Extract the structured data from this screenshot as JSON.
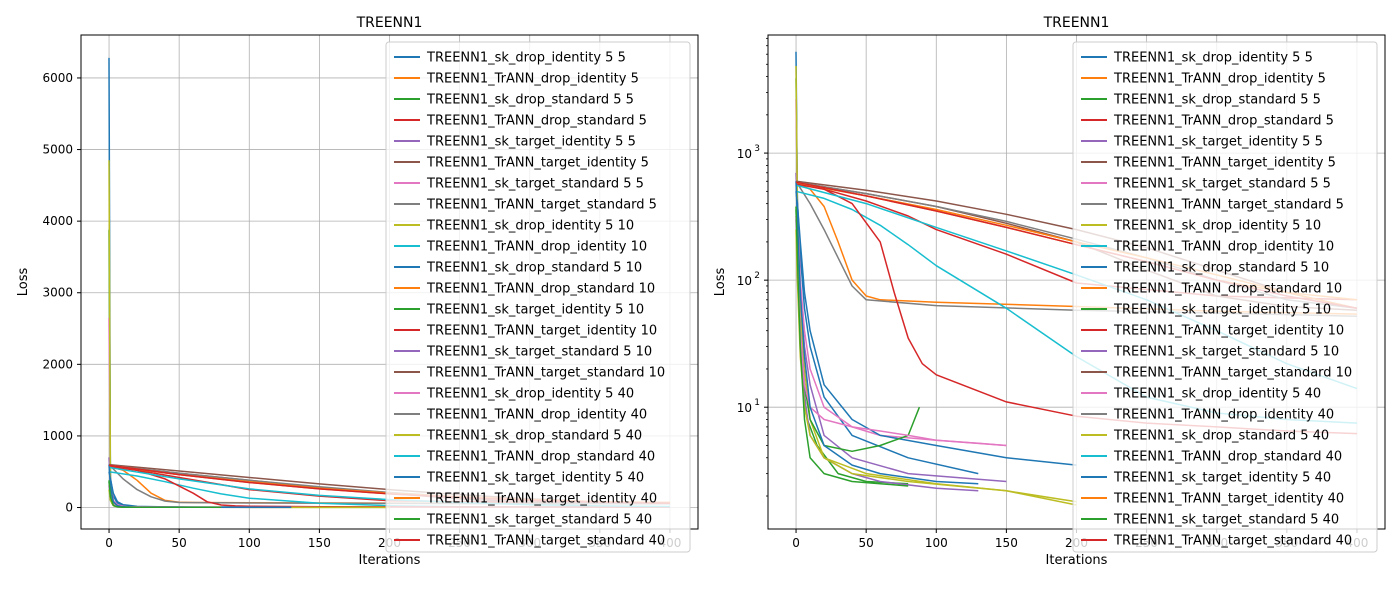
{
  "chart_data": [
    {
      "type": "line",
      "title": "TREENN1",
      "xlabel": "Iterations",
      "ylabel": "Loss",
      "yscale": "linear",
      "xlim": [
        -20,
        420
      ],
      "ylim": [
        -300,
        6600
      ],
      "xticks": [
        0,
        50,
        100,
        150,
        200,
        250,
        300,
        350,
        400
      ],
      "yticks": [
        0,
        1000,
        2000,
        3000,
        4000,
        5000,
        6000
      ],
      "grid": true,
      "legend_position": "upper-right"
    },
    {
      "type": "line",
      "title": "TREENN1",
      "xlabel": "Iterations",
      "ylabel": "Loss",
      "yscale": "log",
      "xlim": [
        -20,
        420
      ],
      "ylim": [
        1.1,
        8500
      ],
      "xticks": [
        0,
        50,
        100,
        150,
        200,
        250,
        300,
        350,
        400
      ],
      "yticks": [
        10,
        100,
        1000
      ],
      "ytick_labels": [
        {
          "base": "10",
          "exp": "1"
        },
        {
          "base": "10",
          "exp": "2"
        },
        {
          "base": "10",
          "exp": "3"
        }
      ],
      "grid": true,
      "legend_position": "upper-right"
    }
  ],
  "series": [
    {
      "name": "TREENN1_sk_drop_identity 5 5",
      "color": "#1f77b4",
      "x": [
        0,
        1,
        3,
        6,
        10,
        20,
        40,
        80,
        130
      ],
      "y": [
        6280,
        420,
        160,
        60,
        30,
        12,
        6,
        4,
        3
      ]
    },
    {
      "name": "TREENN1_TrANN_drop_identity 5",
      "color": "#ff7f0e",
      "x": [
        0,
        10,
        20,
        30,
        40,
        50,
        60,
        100,
        200,
        300,
        400
      ],
      "y": [
        580,
        520,
        380,
        200,
        100,
        75,
        70,
        67,
        62,
        57,
        54
      ]
    },
    {
      "name": "TREENN1_sk_drop_standard 5 5",
      "color": "#2ca02c",
      "x": [
        0,
        1,
        2,
        4,
        8,
        15,
        30,
        50,
        80
      ],
      "y": [
        3880,
        380,
        60,
        20,
        8,
        5,
        3,
        2.6,
        2.5
      ]
    },
    {
      "name": "TREENN1_TrANN_drop_standard 5",
      "color": "#d62728",
      "x": [
        0,
        20,
        50,
        80,
        100,
        150,
        200,
        300,
        400
      ],
      "y": [
        580,
        520,
        420,
        320,
        250,
        160,
        95,
        75,
        70
      ]
    },
    {
      "name": "TREENN1_sk_target_identity 5 5",
      "color": "#9467bd",
      "x": [
        0,
        1,
        3,
        6,
        10,
        20,
        40,
        80,
        150
      ],
      "y": [
        700,
        300,
        80,
        30,
        15,
        6,
        4,
        3,
        2.6
      ]
    },
    {
      "name": "TREENN1_TrANN_target_identity 5",
      "color": "#8c564b",
      "x": [
        0,
        50,
        100,
        150,
        200,
        250,
        300,
        350,
        400
      ],
      "y": [
        590,
        480,
        380,
        280,
        200,
        120,
        75,
        62,
        58
      ]
    },
    {
      "name": "TREENN1_sk_target_standard 5 5",
      "color": "#e377c2",
      "x": [
        0,
        1,
        3,
        6,
        10,
        20,
        40,
        60,
        100,
        150
      ],
      "y": [
        2650,
        400,
        100,
        40,
        20,
        10,
        7,
        6,
        5.5,
        5
      ]
    },
    {
      "name": "TREENN1_TrANN_target_standard 5",
      "color": "#7f7f7f",
      "x": [
        0,
        10,
        20,
        30,
        40,
        50,
        100,
        200,
        300,
        400
      ],
      "y": [
        600,
        400,
        250,
        150,
        90,
        70,
        63,
        58,
        55,
        52
      ]
    },
    {
      "name": "TREENN1_sk_drop_identity 5 10",
      "color": "#bcbd22",
      "x": [
        0,
        1,
        3,
        6,
        10,
        20,
        50,
        100,
        150,
        200
      ],
      "y": [
        4850,
        350,
        60,
        20,
        8,
        4,
        3,
        2.5,
        2.2,
        1.8
      ]
    },
    {
      "name": "TREENN1_TrANN_drop_identity 10",
      "color": "#17becf",
      "x": [
        0,
        20,
        40,
        60,
        80,
        100,
        150,
        200,
        250,
        300,
        350,
        400
      ],
      "y": [
        500,
        440,
        360,
        270,
        190,
        130,
        60,
        25,
        12,
        9,
        8,
        7.5
      ]
    },
    {
      "name": "TREENN1_sk_drop_standard 5 10",
      "color": "#1f77b4",
      "x": [
        0,
        1,
        3,
        6,
        10,
        20,
        40,
        60,
        100,
        150,
        200
      ],
      "y": [
        500,
        400,
        200,
        80,
        40,
        15,
        8,
        6,
        5,
        4,
        3.5
      ]
    },
    {
      "name": "TREENN1_TrANN_drop_standard 10",
      "color": "#ff7f0e",
      "x": [
        0,
        50,
        100,
        150,
        200,
        250,
        300,
        350,
        400
      ],
      "y": [
        580,
        460,
        350,
        260,
        190,
        140,
        100,
        80,
        70
      ]
    },
    {
      "name": "TREENN1_sk_target_identity 5 10",
      "color": "#2ca02c",
      "x": [
        0,
        1,
        3,
        6,
        10,
        20,
        40,
        60,
        80,
        88
      ],
      "y": [
        360,
        150,
        40,
        15,
        8,
        5,
        4.5,
        5,
        6,
        10
      ]
    },
    {
      "name": "TREENN1_TrANN_target_identity 10",
      "color": "#d62728",
      "x": [
        0,
        20,
        40,
        60,
        70,
        80,
        90,
        100,
        150,
        200,
        250,
        300,
        350,
        400
      ],
      "y": [
        570,
        520,
        400,
        200,
        80,
        35,
        22,
        18,
        11,
        8.5,
        7.5,
        7,
        6.5,
        6.2
      ]
    },
    {
      "name": "TREENN1_sk_target_standard 5 10",
      "color": "#9467bd",
      "x": [
        0,
        1,
        3,
        6,
        10,
        20,
        40,
        60,
        100,
        130
      ],
      "y": [
        300,
        120,
        30,
        12,
        6,
        4,
        3,
        2.6,
        2.3,
        2.2
      ]
    },
    {
      "name": "TREENN1_TrANN_target_standard 10",
      "color": "#8c564b",
      "x": [
        0,
        50,
        100,
        150,
        200,
        250,
        300,
        350,
        400
      ],
      "y": [
        600,
        510,
        420,
        330,
        250,
        180,
        120,
        80,
        60
      ]
    },
    {
      "name": "TREENN1_sk_drop_identity 5 40",
      "color": "#e377c2",
      "x": [
        0,
        1,
        3,
        6,
        10,
        20,
        40,
        60,
        80,
        100,
        130,
        150
      ],
      "y": [
        320,
        150,
        40,
        15,
        10,
        8,
        7,
        6.5,
        6,
        5.5,
        5.2,
        5
      ]
    },
    {
      "name": "TREENN1_TrANN_drop_identity 40",
      "color": "#7f7f7f",
      "x": [
        0,
        50,
        100,
        150,
        200,
        250,
        300,
        350,
        400
      ],
      "y": [
        590,
        480,
        380,
        290,
        210,
        150,
        100,
        70,
        60
      ]
    },
    {
      "name": "TREENN1_sk_drop_standard 5 40",
      "color": "#bcbd22",
      "x": [
        0,
        1,
        3,
        6,
        10,
        20,
        40,
        80,
        150,
        200
      ],
      "y": [
        250,
        100,
        25,
        10,
        6,
        4,
        3,
        2.6,
        2.2,
        1.7
      ]
    },
    {
      "name": "TREENN1_TrANN_drop_standard 40",
      "color": "#17becf",
      "x": [
        0,
        50,
        100,
        150,
        200,
        250,
        300,
        350,
        400
      ],
      "y": [
        560,
        400,
        260,
        170,
        110,
        70,
        40,
        22,
        14
      ]
    },
    {
      "name": "TREENN1_sk_target_identity 5 40",
      "color": "#1f77b4",
      "x": [
        0,
        1,
        3,
        6,
        10,
        20,
        40,
        60,
        100,
        130
      ],
      "y": [
        600,
        300,
        80,
        25,
        10,
        5,
        3.5,
        3,
        2.6,
        2.5
      ]
    },
    {
      "name": "TREENN1_TrANN_target_identity 40",
      "color": "#ff7f0e",
      "x": [
        0,
        50,
        100,
        150,
        200,
        250,
        300,
        350,
        400
      ],
      "y": [
        590,
        460,
        360,
        270,
        200,
        150,
        110,
        80,
        60
      ]
    },
    {
      "name": "TREENN1_sk_target_standard 5 40",
      "color": "#2ca02c",
      "x": [
        0,
        1,
        3,
        6,
        10,
        20,
        40,
        60,
        80
      ],
      "y": [
        380,
        150,
        30,
        8,
        4,
        3,
        2.6,
        2.5,
        2.4
      ]
    },
    {
      "name": "TREENN1_TrANN_target_standard 40",
      "color": "#d62728",
      "x": [
        0,
        50,
        100,
        150,
        200,
        250,
        300,
        350,
        400
      ],
      "y": [
        590,
        460,
        350,
        260,
        190,
        140,
        100,
        75,
        60
      ]
    }
  ]
}
